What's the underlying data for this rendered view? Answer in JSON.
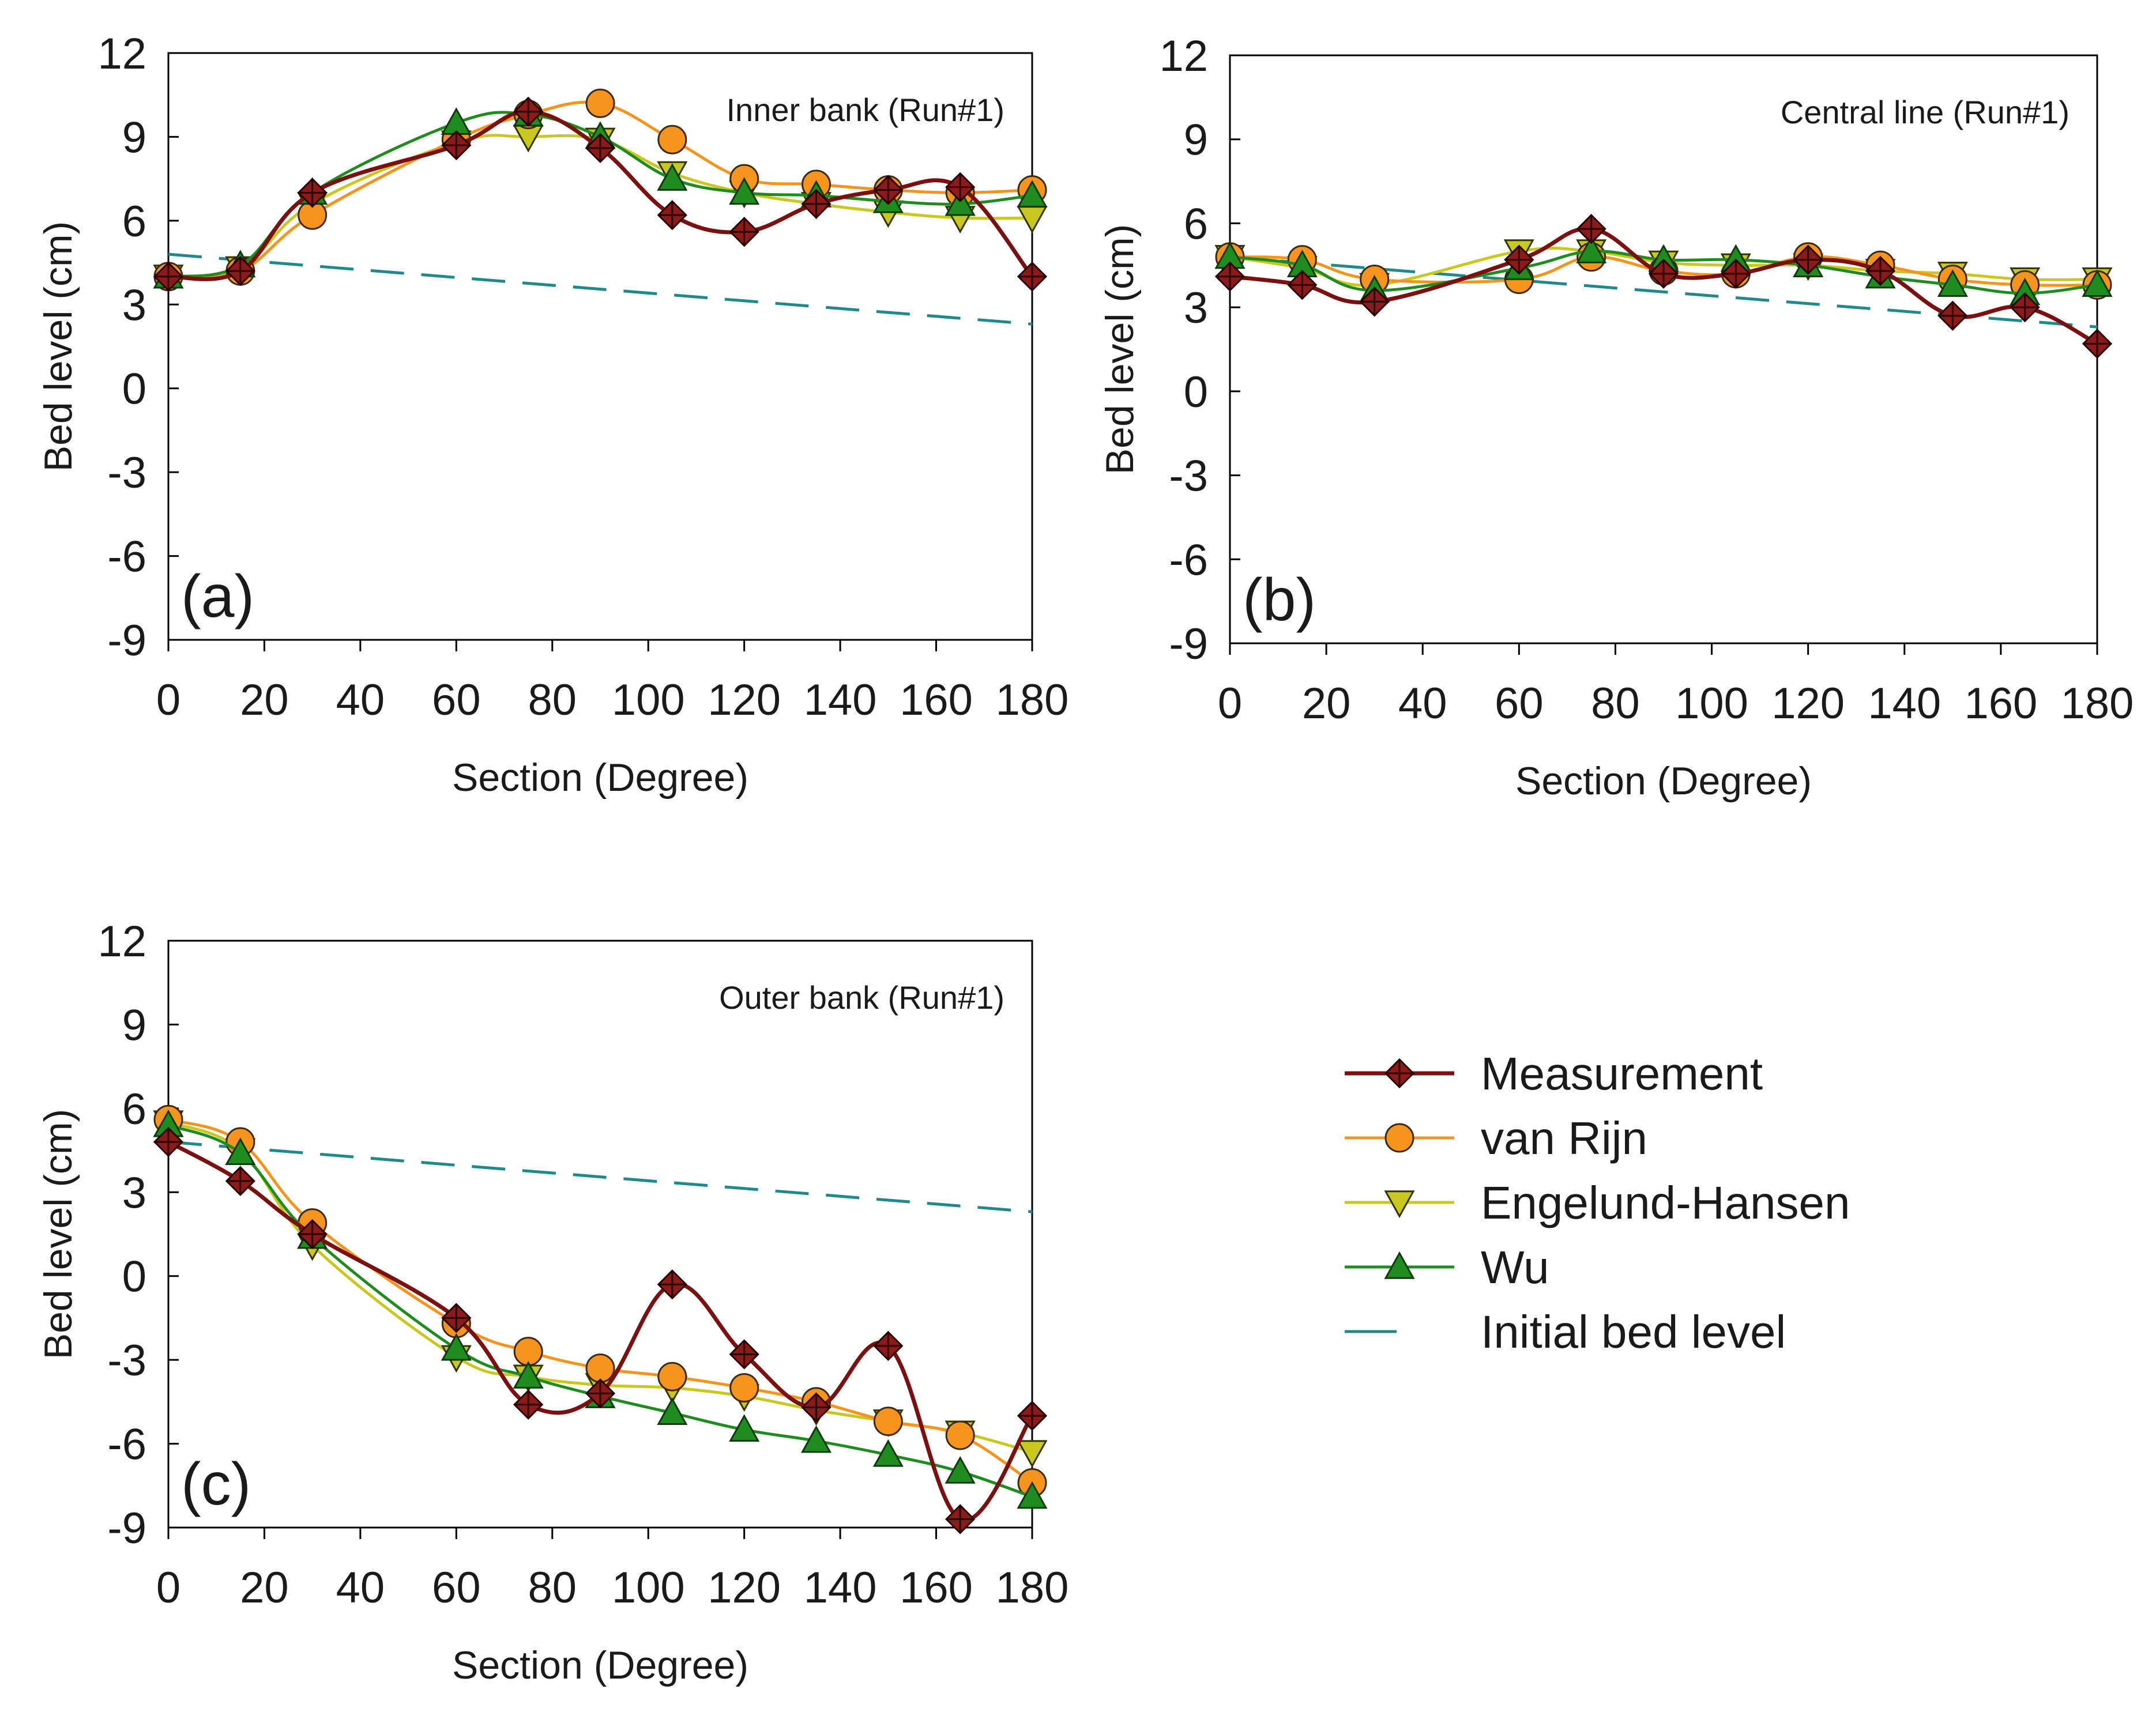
{
  "figure": {
    "legend": {
      "placement": "right of panel (c)",
      "entries": [
        {
          "label": "Measurement",
          "series": "measurement"
        },
        {
          "label": "van Rijn",
          "series": "van_rijn"
        },
        {
          "label": "Engelund-Hansen",
          "series": "engelund_hansen"
        },
        {
          "label": "Wu",
          "series": "wu"
        },
        {
          "label": "Initial bed level",
          "series": "initial"
        }
      ]
    }
  },
  "series_styles": {
    "measurement": {
      "name": "Measurement",
      "line": "#7b1010",
      "fill": "#8b1a1a",
      "marker": "diamond-cross",
      "smooth": true,
      "dashed": false
    },
    "van_rijn": {
      "name": "van Rijn",
      "line": "#f7941d",
      "fill": "#f7941d",
      "marker": "circle",
      "smooth": true,
      "dashed": false
    },
    "engelund_hansen": {
      "name": "Engelund-Hansen",
      "line": "#c8c81e",
      "fill": "#c8c81e",
      "marker": "triangle-down",
      "smooth": true,
      "dashed": false
    },
    "wu": {
      "name": "Wu",
      "line": "#1e8c1e",
      "fill": "#1e8c1e",
      "marker": "triangle-up",
      "smooth": true,
      "dashed": false
    },
    "initial": {
      "name": "Initial bed level",
      "line": "#1f8a8a",
      "fill": "none",
      "marker": "none",
      "smooth": false,
      "dashed": true
    }
  },
  "chart_data": [
    {
      "id": "a",
      "type": "line",
      "panel_label": "(a)",
      "title": "Inner bank (Run#1)",
      "xlabel": "Section (Degree)",
      "ylabel": "Bed level (cm)",
      "xlim": [
        0,
        180
      ],
      "ylim": [
        -9,
        12
      ],
      "xticks": [
        "0",
        "20",
        "40",
        "60",
        "80",
        "100",
        "120",
        "140",
        "160",
        "180"
      ],
      "yticks": [
        "12",
        "9",
        "6",
        "3",
        "0",
        "-3",
        "-6",
        "-9"
      ],
      "grid": false,
      "x": [
        0,
        15,
        30,
        60,
        75,
        90,
        105,
        120,
        135,
        150,
        165,
        180
      ],
      "series": [
        {
          "key": "measurement",
          "values": [
            4.0,
            4.2,
            7.0,
            8.7,
            9.9,
            8.6,
            6.2,
            5.6,
            6.6,
            7.1,
            7.2,
            4.0
          ]
        },
        {
          "key": "van_rijn",
          "values": [
            4.0,
            4.2,
            6.2,
            8.9,
            9.8,
            10.2,
            8.9,
            7.5,
            7.3,
            7.1,
            7.0,
            7.1
          ]
        },
        {
          "key": "engelund_hansen",
          "values": [
            4.0,
            4.3,
            6.6,
            8.8,
            9.0,
            8.9,
            7.7,
            7.0,
            6.6,
            6.3,
            6.1,
            6.1
          ]
        },
        {
          "key": "wu",
          "values": [
            4.0,
            4.4,
            7.0,
            9.5,
            9.8,
            9.0,
            7.5,
            7.0,
            6.9,
            6.7,
            6.6,
            6.9
          ]
        },
        {
          "key": "initial",
          "x": [
            0,
            180
          ],
          "values": [
            4.8,
            2.3
          ]
        }
      ]
    },
    {
      "id": "b",
      "type": "line",
      "panel_label": "(b)",
      "title": "Central line (Run#1)",
      "xlabel": "Section (Degree)",
      "ylabel": "Bed level (cm)",
      "xlim": [
        0,
        180
      ],
      "ylim": [
        -9,
        12
      ],
      "xticks": [
        "0",
        "20",
        "40",
        "60",
        "80",
        "100",
        "120",
        "140",
        "160",
        "180"
      ],
      "yticks": [
        "12",
        "9",
        "6",
        "3",
        "0",
        "-3",
        "-6",
        "-9"
      ],
      "grid": false,
      "x": [
        0,
        15,
        30,
        60,
        75,
        90,
        105,
        120,
        135,
        150,
        165,
        180
      ],
      "series": [
        {
          "key": "measurement",
          "values": [
            4.1,
            3.8,
            3.2,
            4.7,
            5.8,
            4.2,
            4.2,
            4.7,
            4.3,
            2.7,
            3.0,
            1.7
          ]
        },
        {
          "key": "van_rijn",
          "values": [
            4.8,
            4.7,
            4.0,
            4.0,
            4.8,
            4.3,
            4.2,
            4.8,
            4.5,
            4.0,
            3.8,
            3.8
          ]
        },
        {
          "key": "engelund_hansen",
          "values": [
            4.8,
            4.4,
            3.8,
            5.0,
            5.0,
            4.6,
            4.5,
            4.5,
            4.3,
            4.2,
            4.0,
            4.0
          ]
        },
        {
          "key": "wu",
          "values": [
            4.8,
            4.5,
            3.6,
            4.4,
            5.0,
            4.7,
            4.7,
            4.5,
            4.1,
            3.8,
            3.5,
            3.8
          ]
        },
        {
          "key": "initial",
          "x": [
            0,
            180
          ],
          "values": [
            4.8,
            2.3
          ]
        }
      ]
    },
    {
      "id": "c",
      "type": "line",
      "panel_label": "(c)",
      "title": "Outer bank (Run#1)",
      "xlabel": "Section (Degree)",
      "ylabel": "Bed level (cm)",
      "xlim": [
        0,
        180
      ],
      "ylim": [
        -9,
        12
      ],
      "xticks": [
        "0",
        "20",
        "40",
        "60",
        "80",
        "100",
        "120",
        "140",
        "160",
        "180"
      ],
      "yticks": [
        "12",
        "9",
        "6",
        "3",
        "0",
        "-3",
        "-6",
        "-9"
      ],
      "grid": false,
      "x": [
        0,
        15,
        30,
        60,
        75,
        90,
        105,
        120,
        135,
        150,
        165,
        180
      ],
      "series": [
        {
          "key": "measurement",
          "values": [
            4.8,
            3.4,
            1.5,
            -1.5,
            -4.6,
            -4.2,
            -0.3,
            -2.8,
            -4.7,
            -2.5,
            -8.7,
            -5.0
          ]
        },
        {
          "key": "van_rijn",
          "values": [
            5.6,
            4.8,
            1.9,
            -1.7,
            -2.7,
            -3.3,
            -3.6,
            -4.0,
            -4.5,
            -5.2,
            -5.7,
            -7.4
          ]
        },
        {
          "key": "engelund_hansen",
          "values": [
            5.5,
            4.5,
            1.1,
            -2.9,
            -3.6,
            -3.9,
            -4.0,
            -4.3,
            -4.8,
            -5.2,
            -5.6,
            -6.3
          ]
        },
        {
          "key": "wu",
          "values": [
            5.4,
            4.4,
            1.4,
            -2.6,
            -3.6,
            -4.3,
            -4.9,
            -5.5,
            -5.9,
            -6.4,
            -7.0,
            -7.9
          ]
        },
        {
          "key": "initial",
          "x": [
            0,
            180
          ],
          "values": [
            4.8,
            2.3
          ]
        }
      ]
    }
  ]
}
